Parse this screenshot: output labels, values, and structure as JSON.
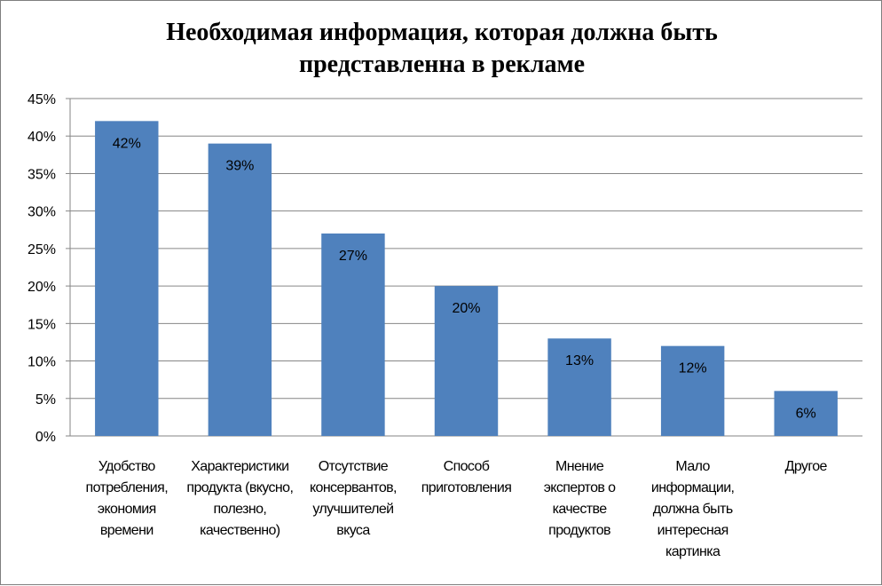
{
  "chart_data": {
    "type": "bar",
    "title_lines": [
      "Необходимая информация, которая должна быть",
      "представленна в рекламе"
    ],
    "categories": [
      [
        "Удобство",
        "потребления,",
        "экономия",
        "времени"
      ],
      [
        "Характеристики",
        "продукта (вкусно,",
        "полезно,",
        "качественно)"
      ],
      [
        "Отсутствие",
        "консервантов,",
        "улучшителей",
        "вкуса"
      ],
      [
        "Способ",
        "приготовления"
      ],
      [
        "Мнение",
        "экспертов о",
        "качестве",
        "продуктов"
      ],
      [
        "Мало",
        "информации,",
        "должна быть",
        "интересная",
        "картинка"
      ],
      [
        "Другое"
      ]
    ],
    "values": [
      42,
      39,
      27,
      20,
      13,
      12,
      6
    ],
    "data_labels": [
      "42%",
      "39%",
      "27%",
      "20%",
      "13%",
      "12%",
      "6%"
    ],
    "ytick_labels": [
      "0%",
      "5%",
      "10%",
      "15%",
      "20%",
      "25%",
      "30%",
      "35%",
      "40%",
      "45%"
    ],
    "ylim": [
      0,
      45
    ],
    "ytick_step": 5,
    "grid": true,
    "legend": "none",
    "bar_color": "#4f81bd",
    "grid_color": "#868686",
    "xlabel": "",
    "ylabel": ""
  }
}
